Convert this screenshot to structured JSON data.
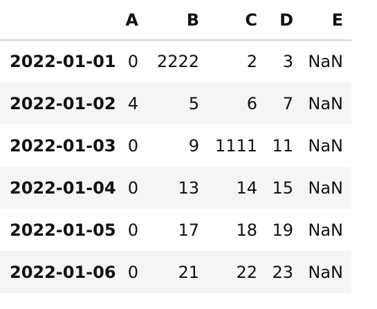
{
  "table": {
    "index_header": "",
    "columns": [
      "A",
      "B",
      "C",
      "D",
      "E"
    ],
    "rows": [
      {
        "index": "2022-01-01",
        "cells": [
          "0",
          "2222",
          "2",
          "3",
          "NaN"
        ]
      },
      {
        "index": "2022-01-02",
        "cells": [
          "4",
          "5",
          "6",
          "7",
          "NaN"
        ]
      },
      {
        "index": "2022-01-03",
        "cells": [
          "0",
          "9",
          "1111",
          "11",
          "NaN"
        ]
      },
      {
        "index": "2022-01-04",
        "cells": [
          "0",
          "13",
          "14",
          "15",
          "NaN"
        ]
      },
      {
        "index": "2022-01-05",
        "cells": [
          "0",
          "17",
          "18",
          "19",
          "NaN"
        ]
      },
      {
        "index": "2022-01-06",
        "cells": [
          "0",
          "21",
          "22",
          "23",
          "NaN"
        ]
      }
    ]
  }
}
